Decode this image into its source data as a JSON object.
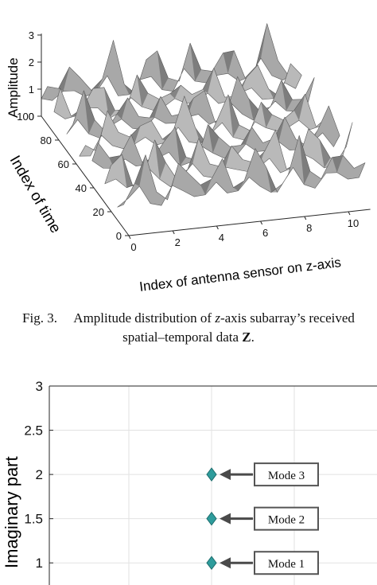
{
  "figure_top": {
    "zlabel": "Amplitude",
    "ylabel": "Index of time",
    "xlabel": "Index of antenna sensor on z-axis",
    "ztick_labels": [
      "0",
      "1",
      "2",
      "3"
    ],
    "ytick_labels": [
      "0",
      "20",
      "40",
      "60",
      "80",
      "100"
    ],
    "xtick_labels": [
      "0",
      "2",
      "4",
      "6",
      "8",
      "10"
    ]
  },
  "caption": {
    "prefix": "Fig. 3.",
    "part1": "Amplitude distribution of ",
    "z": "z",
    "part2": "-axis subarray’s received",
    "line2": "spatial–temporal data ",
    "bold": "Z",
    "end": "."
  },
  "colors": {
    "surface": "#b9b9b9",
    "surface_dark": "#5a5a5a",
    "grid": "#e2e2e2",
    "axis": "#262626",
    "marker": "#2e9c9c",
    "marker_edge": "#1f6e6e",
    "arrow": "#4a4a4a"
  },
  "chart_data": [
    {
      "type": "surface",
      "zlabel": "Amplitude",
      "ylabel": "Index of time",
      "xlabel": "Index of antenna sensor on z-axis",
      "xlim": [
        0,
        11
      ],
      "ylim": [
        0,
        100
      ],
      "zlim": [
        0,
        3
      ],
      "note_rows": 7,
      "row_peaks": [
        2.6,
        2.4,
        2.2,
        2.5,
        2.3,
        2.1,
        2.7
      ]
    },
    {
      "type": "scatter",
      "ylabel": "Imaginary part",
      "ylim": [
        0.75,
        3
      ],
      "yticks": [
        1,
        1.5,
        2,
        2.5,
        3
      ],
      "ytick_labels": [
        "1",
        "1.5",
        "2",
        "2.5",
        "3"
      ],
      "points": [
        {
          "x": 0,
          "y": 1,
          "label": "Mode 1"
        },
        {
          "x": 0,
          "y": 1.5,
          "label": "Mode 2"
        },
        {
          "x": 0,
          "y": 2,
          "label": "Mode 3"
        }
      ],
      "xlim": [
        -1,
        1
      ],
      "grid": true
    }
  ]
}
